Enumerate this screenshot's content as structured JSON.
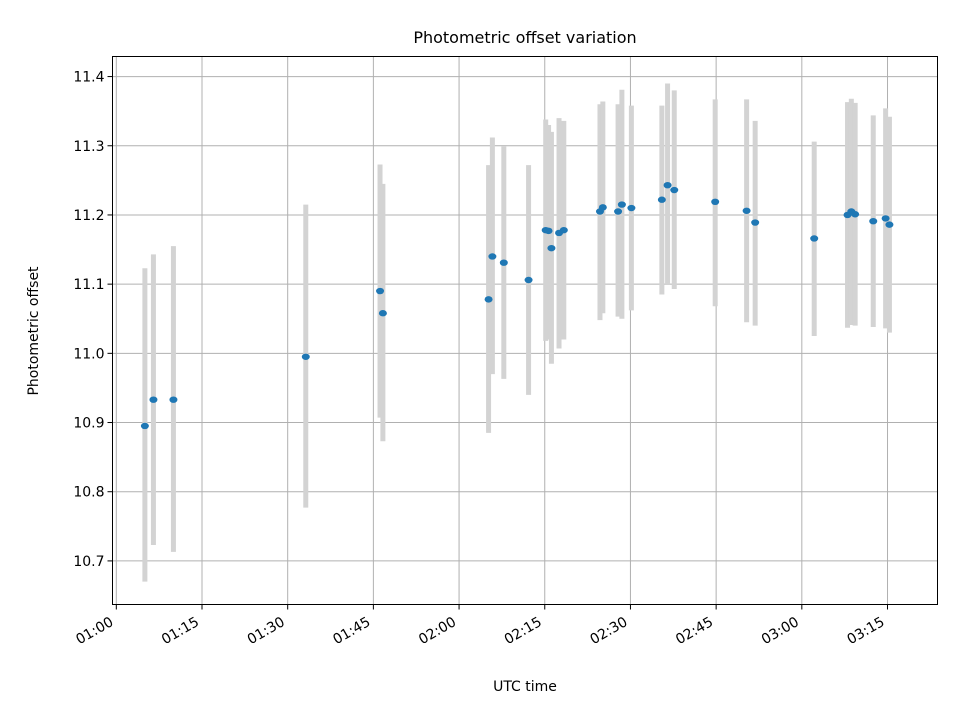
{
  "chart_data": {
    "type": "scatter",
    "title": "Photometric offset variation",
    "xlabel": "UTC time",
    "ylabel": "Photometric offset",
    "x_unit": "UTC time (HH:MM)",
    "xlim": [
      "00:59:20",
      "03:23:45"
    ],
    "ylim": [
      10.637,
      11.429
    ],
    "x_ticks": [
      "01:00",
      "01:15",
      "01:30",
      "01:45",
      "02:00",
      "02:15",
      "02:30",
      "02:45",
      "03:00",
      "03:15"
    ],
    "y_ticks": [
      "10.7",
      "10.8",
      "10.9",
      "11.0",
      "11.1",
      "11.2",
      "11.3",
      "11.4"
    ],
    "grid": true,
    "colors": {
      "point": "#1f77b4",
      "errorbar": "#d3d3d3",
      "grid": "#b0b0b0"
    },
    "series": [
      {
        "points": [
          {
            "x": "01:05:00",
            "y": 10.895,
            "ylow": 10.67,
            "yhigh": 11.123
          },
          {
            "x": "01:06:30",
            "y": 10.933,
            "ylow": 10.723,
            "yhigh": 11.143
          },
          {
            "x": "01:10:00",
            "y": 10.933,
            "ylow": 10.713,
            "yhigh": 11.155
          },
          {
            "x": "01:33:10",
            "y": 10.995,
            "ylow": 10.777,
            "yhigh": 11.215
          },
          {
            "x": "01:46:10",
            "y": 11.09,
            "ylow": 10.907,
            "yhigh": 11.273
          },
          {
            "x": "01:46:40",
            "y": 11.058,
            "ylow": 10.873,
            "yhigh": 11.245
          },
          {
            "x": "02:05:10",
            "y": 11.078,
            "ylow": 10.885,
            "yhigh": 11.272
          },
          {
            "x": "02:05:50",
            "y": 11.14,
            "ylow": 10.97,
            "yhigh": 11.312
          },
          {
            "x": "02:07:50",
            "y": 11.131,
            "ylow": 10.963,
            "yhigh": 11.299
          },
          {
            "x": "02:12:10",
            "y": 11.106,
            "ylow": 10.94,
            "yhigh": 11.272
          },
          {
            "x": "02:15:10",
            "y": 11.178,
            "ylow": 11.018,
            "yhigh": 11.338
          },
          {
            "x": "02:15:40",
            "y": 11.177,
            "ylow": 11.02,
            "yhigh": 11.33
          },
          {
            "x": "02:16:10",
            "y": 11.152,
            "ylow": 10.985,
            "yhigh": 11.32
          },
          {
            "x": "02:17:30",
            "y": 11.174,
            "ylow": 11.007,
            "yhigh": 11.34
          },
          {
            "x": "02:18:20",
            "y": 11.178,
            "ylow": 11.02,
            "yhigh": 11.336
          },
          {
            "x": "02:24:40",
            "y": 11.205,
            "ylow": 11.048,
            "yhigh": 11.36
          },
          {
            "x": "02:25:10",
            "y": 11.211,
            "ylow": 11.058,
            "yhigh": 11.364
          },
          {
            "x": "02:27:50",
            "y": 11.205,
            "ylow": 11.053,
            "yhigh": 11.36
          },
          {
            "x": "02:28:30",
            "y": 11.215,
            "ylow": 11.05,
            "yhigh": 11.381
          },
          {
            "x": "02:30:10",
            "y": 11.21,
            "ylow": 11.062,
            "yhigh": 11.358
          },
          {
            "x": "02:35:30",
            "y": 11.222,
            "ylow": 11.085,
            "yhigh": 11.358
          },
          {
            "x": "02:36:30",
            "y": 11.243,
            "ylow": 11.1,
            "yhigh": 11.39
          },
          {
            "x": "02:37:40",
            "y": 11.236,
            "ylow": 11.093,
            "yhigh": 11.38
          },
          {
            "x": "02:44:50",
            "y": 11.219,
            "ylow": 11.068,
            "yhigh": 11.367
          },
          {
            "x": "02:50:20",
            "y": 11.206,
            "ylow": 11.045,
            "yhigh": 11.367
          },
          {
            "x": "02:51:50",
            "y": 11.189,
            "ylow": 11.04,
            "yhigh": 11.336
          },
          {
            "x": "03:02:10",
            "y": 11.166,
            "ylow": 11.025,
            "yhigh": 11.306
          },
          {
            "x": "03:08:00",
            "y": 11.2,
            "ylow": 11.037,
            "yhigh": 11.363
          },
          {
            "x": "03:08:40",
            "y": 11.205,
            "ylow": 11.041,
            "yhigh": 11.368
          },
          {
            "x": "03:09:20",
            "y": 11.201,
            "ylow": 11.04,
            "yhigh": 11.362
          },
          {
            "x": "03:12:30",
            "y": 11.191,
            "ylow": 11.038,
            "yhigh": 11.344
          },
          {
            "x": "03:14:40",
            "y": 11.195,
            "ylow": 11.036,
            "yhigh": 11.354
          },
          {
            "x": "03:15:20",
            "y": 11.186,
            "ylow": 11.03,
            "yhigh": 11.342
          }
        ]
      }
    ]
  }
}
